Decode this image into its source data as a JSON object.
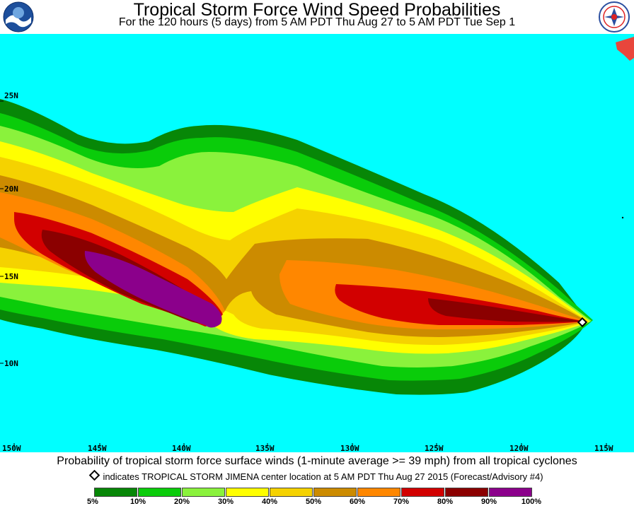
{
  "header": {
    "title": "Tropical Storm Force Wind Speed Probabilities",
    "subtitle": "For the 120 hours (5 days) from 5 AM PDT Thu Aug 27 to 5 AM PDT Tue Sep 1",
    "left_logo_text": "NOAA",
    "right_logo_text": "NATIONAL WEATHER SERVICE"
  },
  "map": {
    "ocean_color": "#00FFFF",
    "land_color": "#E8463C",
    "lat_labels": [
      "25N",
      "20N",
      "15N",
      "10N"
    ],
    "lon_labels": [
      "150W",
      "145W",
      "140W",
      "135W",
      "130W",
      "125W",
      "120W",
      "115W"
    ],
    "storm_name": "TROPICAL STORM JIMENA",
    "storm_center_icon": "diamond-marker-icon"
  },
  "footer": {
    "caption": "Probability of tropical storm force surface winds (1-minute average >= 39 mph) from all tropical cyclones",
    "indicates": "indicates TROPICAL STORM JIMENA center location at 5 AM PDT Thu Aug 27 2015 (Forecast/Advisory #4)"
  },
  "legend": {
    "bins": [
      {
        "color": "#078707"
      },
      {
        "color": "#0ACC0A"
      },
      {
        "color": "#8AF23C"
      },
      {
        "color": "#FFFF00"
      },
      {
        "color": "#F5D200"
      },
      {
        "color": "#CC8B00"
      },
      {
        "color": "#FF8700"
      },
      {
        "color": "#D20000"
      },
      {
        "color": "#8B0000"
      },
      {
        "color": "#8B008B"
      }
    ],
    "labels": [
      "5%",
      "10%",
      "20%",
      "30%",
      "40%",
      "50%",
      "60%",
      "70%",
      "80%",
      "90%",
      "100%"
    ]
  }
}
